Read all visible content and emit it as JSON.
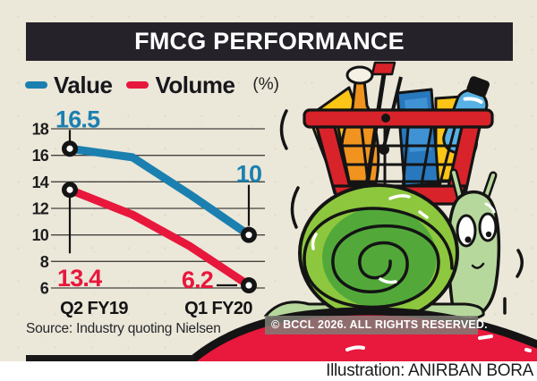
{
  "title": "FMCG PERFORMANCE",
  "legend": {
    "items": [
      {
        "label": "Value",
        "color": "#1b80b0"
      },
      {
        "label": "Volume",
        "color": "#e8173c"
      }
    ],
    "unit": "(%)"
  },
  "chart_data": {
    "type": "line",
    "categories": [
      "Q2 FY19",
      "Q1 FY20"
    ],
    "series": [
      {
        "name": "Value",
        "color": "#1b80b0",
        "values": [
          16.5,
          10
        ]
      },
      {
        "name": "Volume",
        "color": "#e8173c",
        "values": [
          13.4,
          6.2
        ]
      }
    ],
    "ylim": [
      6,
      18
    ],
    "yticks": [
      18,
      16,
      14,
      12,
      10,
      8,
      6
    ],
    "grid": true,
    "unit": "(%)",
    "legend_position": "top",
    "point_marker": "black-ring-white-center"
  },
  "source": "Source: Industry quoting Nielsen",
  "copyright": "© BCCL 2026. ALL RIGHTS RESERVED.",
  "credit": "Illustration: ANIRBAN BORA",
  "illustration": {
    "name": "snail-carrying-shopping-basket",
    "colors": {
      "basket_red": "#d8232a",
      "shell_outer_green": "#8dc73e",
      "shell_inner_green": "#52a93a",
      "body_green": "#b7d89c",
      "mound_red": "#e8193c",
      "outline": "#141414"
    }
  },
  "palette": {
    "background": "#ebe7d9",
    "title_bar": "#262229",
    "footer": "#ffffff"
  }
}
